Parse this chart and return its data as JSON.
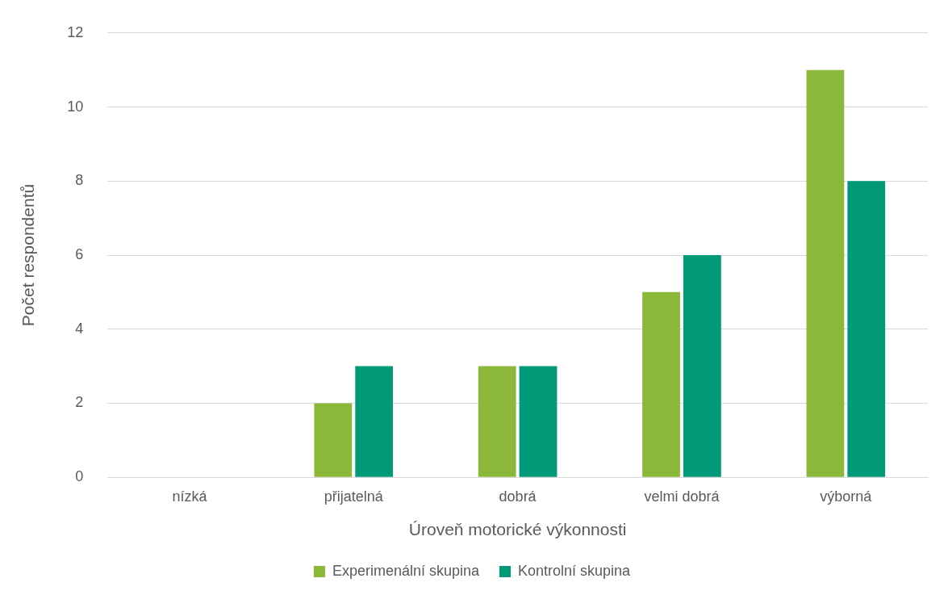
{
  "chart_data": {
    "type": "bar",
    "xlabel": "Úroveň motorické výkonnosti",
    "ylabel": "Počet respondentů",
    "categories": [
      "nízká",
      "přijatelná",
      "dobrá",
      "velmi dobrá",
      "výborná"
    ],
    "series": [
      {
        "name": "Experimenální skupina",
        "color": "#8cb83a",
        "values": [
          0,
          2,
          3,
          5,
          11
        ]
      },
      {
        "name": "Kontrolní skupina",
        "color": "#009a78",
        "values": [
          0,
          3,
          3,
          6,
          8
        ]
      }
    ],
    "ylim": [
      0,
      12
    ],
    "yticks": [
      0,
      2,
      4,
      6,
      8,
      10,
      12
    ],
    "grid": "y",
    "legend": "bottom"
  }
}
